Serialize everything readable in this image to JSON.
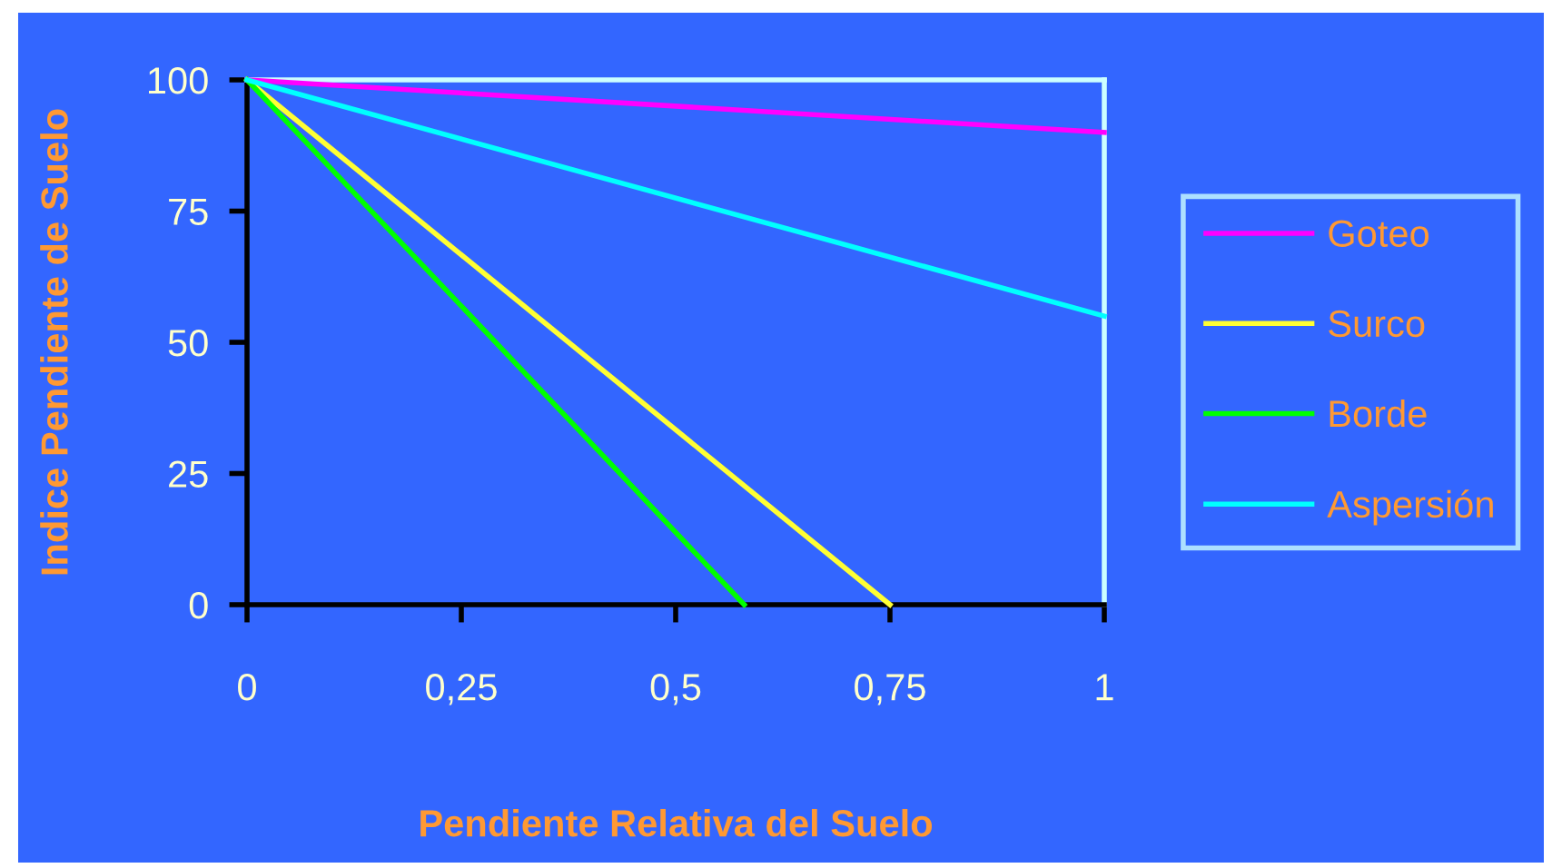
{
  "chart_data": {
    "type": "line",
    "xlabel": "Pendiente Relativa del Suelo",
    "ylabel": "Indice Pendiente de Suelo",
    "series": [
      {
        "name": "Goteo",
        "color": "#ff00ff",
        "x": [
          0,
          1
        ],
        "values": [
          100,
          90
        ]
      },
      {
        "name": "Surco",
        "color": "#ffff33",
        "x": [
          0,
          0.75
        ],
        "values": [
          100,
          0
        ]
      },
      {
        "name": "Borde",
        "color": "#00ff00",
        "x": [
          0,
          0.58
        ],
        "values": [
          100,
          0
        ]
      },
      {
        "name": "Aspersión",
        "color": "#00ffff",
        "x": [
          0,
          1
        ],
        "values": [
          100,
          55
        ]
      }
    ],
    "xlim": [
      0,
      1
    ],
    "xticks": [
      0,
      {
        "value": 0.25,
        "label": "0,25"
      },
      {
        "value": 0.5,
        "label": "0,5"
      },
      {
        "value": 0.75,
        "label": "0,75"
      },
      1
    ],
    "ylim": [
      0,
      100
    ],
    "yticks": [
      0,
      25,
      50,
      75,
      100
    ],
    "grid": false,
    "legend": "right",
    "marker": "none",
    "line_style": "solid"
  }
}
